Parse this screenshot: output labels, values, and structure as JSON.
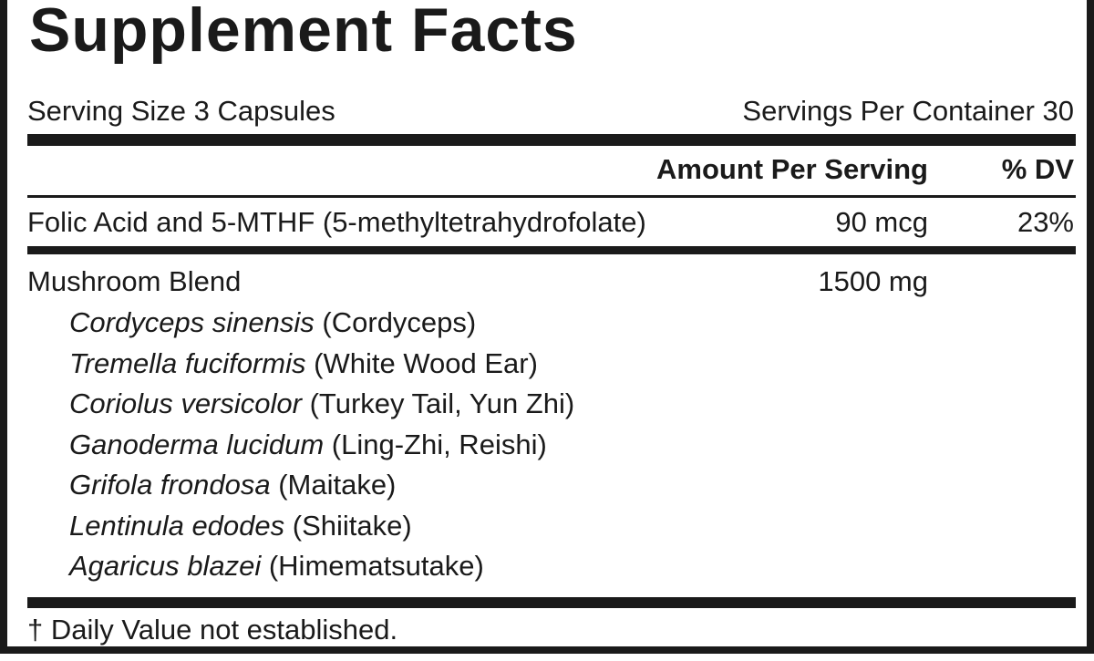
{
  "title": "Supplement Facts",
  "serving_size": "Serving Size 3 Capsules",
  "servings_per_container": "Servings Per Container 30",
  "header": {
    "amount": "Amount Per Serving",
    "dv": "% DV"
  },
  "nutrients": [
    {
      "name": "Folic Acid and 5-MTHF (5-methyltetrahydrofolate)",
      "amount": "90 mcg",
      "dv": "23%"
    }
  ],
  "blend": {
    "name": "Mushroom Blend",
    "amount": "1500 mg",
    "ingredients": [
      {
        "latin": "Cordyceps sinensis",
        "common": "(Cordyceps)"
      },
      {
        "latin": "Tremella fuciformis",
        "common": "(White Wood Ear)"
      },
      {
        "latin": "Coriolus versicolor",
        "common": "(Turkey Tail, Yun Zhi)"
      },
      {
        "latin": "Ganoderma lucidum",
        "common": "(Ling-Zhi, Reishi)"
      },
      {
        "latin": "Grifola frondosa",
        "common": "(Maitake)"
      },
      {
        "latin": "Lentinula edodes",
        "common": "(Shiitake)"
      },
      {
        "latin": "Agaricus blazei",
        "common": "(Himematsutake)"
      }
    ]
  },
  "footnote": "† Daily Value not established."
}
